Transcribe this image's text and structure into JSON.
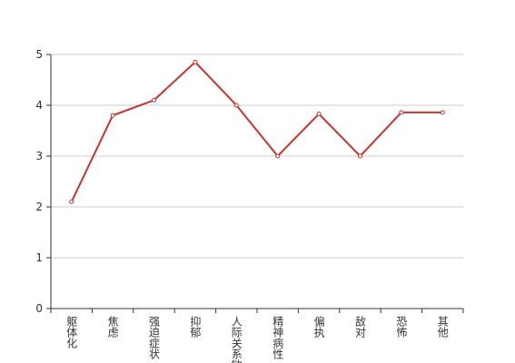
{
  "chart_data": {
    "type": "line",
    "categories": [
      "躯体化",
      "焦虑",
      "强迫症状",
      "抑郁",
      "人际关系敏感",
      "精神病性",
      "偏执",
      "敌对",
      "恐怖",
      "其他"
    ],
    "values": [
      2.1,
      3.8,
      4.1,
      4.85,
      4.0,
      3.0,
      3.83,
      3.0,
      3.86,
      3.86
    ],
    "color": "#c23531",
    "ylim": [
      0,
      5
    ],
    "yticks": [
      0,
      1,
      2,
      3,
      4,
      5
    ],
    "grid": true
  }
}
